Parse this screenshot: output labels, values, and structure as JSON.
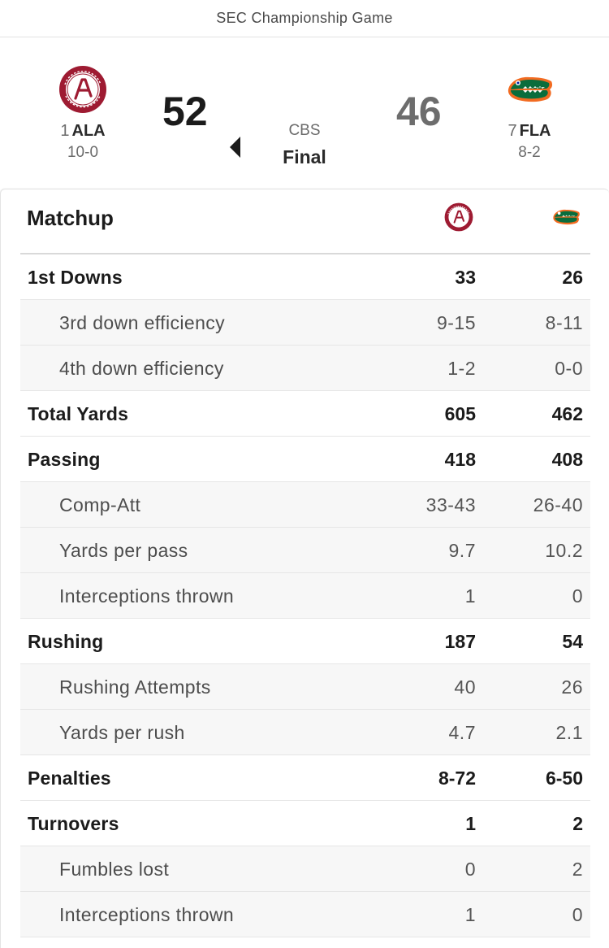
{
  "header": {
    "title": "SEC Championship Game"
  },
  "game": {
    "network": "CBS",
    "status": "Final",
    "home": {
      "rank": "1",
      "abbr": "ALA",
      "record": "10-0",
      "score": "52",
      "logo_icon": "alabama-logo-icon",
      "colors": {
        "primary": "#9e1b32",
        "secondary": "#ffffff"
      }
    },
    "away": {
      "rank": "7",
      "abbr": "FLA",
      "record": "8-2",
      "score": "46",
      "logo_icon": "gators-logo-icon",
      "colors": {
        "primary": "#0a6d3c",
        "secondary": "#f26b21",
        "tertiary": "#0021a5"
      }
    }
  },
  "matchup": {
    "title": "Matchup",
    "rows": [
      {
        "label": "1st Downs",
        "home": "33",
        "away": "26",
        "level": "main"
      },
      {
        "label": "3rd down efficiency",
        "home": "9-15",
        "away": "8-11",
        "level": "sub"
      },
      {
        "label": "4th down efficiency",
        "home": "1-2",
        "away": "0-0",
        "level": "sub"
      },
      {
        "label": "Total Yards",
        "home": "605",
        "away": "462",
        "level": "main"
      },
      {
        "label": "Passing",
        "home": "418",
        "away": "408",
        "level": "main"
      },
      {
        "label": "Comp-Att",
        "home": "33-43",
        "away": "26-40",
        "level": "sub"
      },
      {
        "label": "Yards per pass",
        "home": "9.7",
        "away": "10.2",
        "level": "sub"
      },
      {
        "label": "Interceptions thrown",
        "home": "1",
        "away": "0",
        "level": "sub"
      },
      {
        "label": "Rushing",
        "home": "187",
        "away": "54",
        "level": "main"
      },
      {
        "label": "Rushing Attempts",
        "home": "40",
        "away": "26",
        "level": "sub"
      },
      {
        "label": "Yards per rush",
        "home": "4.7",
        "away": "2.1",
        "level": "sub"
      },
      {
        "label": "Penalties",
        "home": "8-72",
        "away": "6-50",
        "level": "main"
      },
      {
        "label": "Turnovers",
        "home": "1",
        "away": "2",
        "level": "main"
      },
      {
        "label": "Fumbles lost",
        "home": "0",
        "away": "2",
        "level": "sub"
      },
      {
        "label": "Interceptions thrown",
        "home": "1",
        "away": "0",
        "level": "sub"
      }
    ]
  }
}
